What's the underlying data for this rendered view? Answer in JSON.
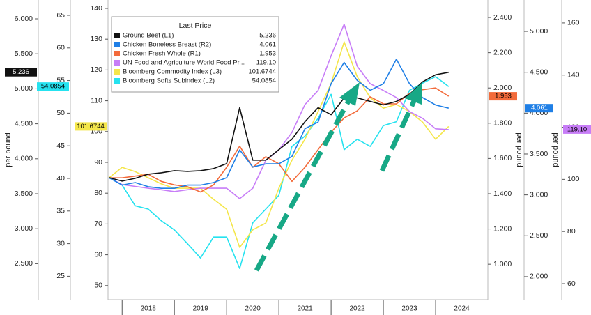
{
  "chart_data": {
    "type": "line",
    "legend_title": "Last Price",
    "legend": "upper left",
    "x": [
      2017.75,
      2018.0,
      2018.25,
      2018.5,
      2018.75,
      2019.0,
      2019.25,
      2019.5,
      2019.75,
      2020.0,
      2020.25,
      2020.5,
      2020.75,
      2021.0,
      2021.25,
      2021.5,
      2021.75,
      2022.0,
      2022.25,
      2022.5,
      2022.75,
      2023.0,
      2023.25,
      2023.5,
      2023.75,
      2024.0,
      2024.25
    ],
    "xlim": [
      2017.73,
      2025.0
    ],
    "xticks": [
      {
        "value": 2018.5,
        "label": "2018"
      },
      {
        "value": 2019.5,
        "label": "2019"
      },
      {
        "value": 2020.5,
        "label": "2020"
      },
      {
        "value": 2021.5,
        "label": "2021"
      },
      {
        "value": 2022.5,
        "label": "2022"
      },
      {
        "value": 2023.5,
        "label": "2023"
      },
      {
        "value": 2024.5,
        "label": "2024"
      }
    ],
    "x_separators": [
      2018,
      2019,
      2020,
      2021,
      2022,
      2023,
      2024
    ],
    "axes": [
      {
        "id": "L1",
        "side": "left",
        "label": "per pound",
        "ylim": [
          1.986,
          6.269
        ],
        "yticks": [
          {
            "value": 2.5,
            "label": "2.500"
          },
          {
            "value": 3.0,
            "label": "3.000"
          },
          {
            "value": 3.5,
            "label": "3.500"
          },
          {
            "value": 4.0,
            "label": "4.000"
          },
          {
            "value": 4.5,
            "label": "4.500"
          },
          {
            "value": 5.0,
            "label": "5.000"
          },
          {
            "value": 5.5,
            "label": "5.500"
          },
          {
            "value": 6.0,
            "label": "6.000"
          }
        ]
      },
      {
        "id": "L2",
        "side": "left",
        "ylim": [
          21.41,
          67.35
        ],
        "yticks": [
          25,
          30,
          35,
          40,
          45,
          50,
          55,
          60,
          65
        ]
      },
      {
        "id": "L3",
        "side": "left",
        "ylim": [
          45.43,
          142.71
        ],
        "yticks": [
          50,
          60,
          70,
          80,
          90,
          100,
          110,
          120,
          130,
          140
        ]
      },
      {
        "id": "R1",
        "side": "right",
        "label": "per pound",
        "ylim": [
          0.799,
          2.499
        ],
        "yticks": [
          {
            "value": 1.0,
            "label": "1.000"
          },
          {
            "value": 1.2,
            "label": "1.200"
          },
          {
            "value": 1.4,
            "label": "1.400"
          },
          {
            "value": 1.6,
            "label": "1.600"
          },
          {
            "value": 1.8,
            "label": "1.800"
          },
          {
            "value": 2.0,
            "label": "2.000"
          },
          {
            "value": 2.2,
            "label": "2.200"
          },
          {
            "value": 2.4,
            "label": "2.400"
          }
        ]
      },
      {
        "id": "R2",
        "side": "right",
        "label": "per pound",
        "ylim": [
          1.718,
          5.384
        ],
        "yticks": [
          {
            "value": 2.0,
            "label": "2.000"
          },
          {
            "value": 2.5,
            "label": "2.500"
          },
          {
            "value": 3.0,
            "label": "3.000"
          },
          {
            "value": 3.5,
            "label": "3.500"
          },
          {
            "value": 4.0,
            "label": "4.000"
          },
          {
            "value": 4.5,
            "label": "4.500"
          },
          {
            "value": 5.0,
            "label": "5.000"
          }
        ]
      },
      {
        "id": "R3",
        "side": "right",
        "ylim": [
          53.85,
          168.8
        ],
        "yticks": [
          60,
          80,
          100,
          120,
          140,
          160
        ]
      }
    ],
    "series": [
      {
        "name": "Ground Beef (L1)",
        "axis": "L1",
        "color": "#111111",
        "last_price": "5.236",
        "values": [
          3.73,
          3.68,
          3.72,
          3.78,
          3.8,
          3.83,
          3.82,
          3.83,
          3.86,
          3.93,
          4.73,
          3.98,
          3.98,
          4.13,
          4.28,
          4.53,
          4.73,
          4.63,
          4.87,
          4.87,
          4.82,
          4.77,
          4.82,
          4.92,
          5.1,
          5.2,
          5.236
        ]
      },
      {
        "name": "Chicken Boneless Breast (R2)",
        "axis": "R2",
        "color": "#1f7fe6",
        "last_price": "4.061",
        "values": [
          3.21,
          3.12,
          3.15,
          3.1,
          3.08,
          3.08,
          3.12,
          3.12,
          3.15,
          3.21,
          3.55,
          3.34,
          3.38,
          3.38,
          3.47,
          3.81,
          3.89,
          4.36,
          4.62,
          4.4,
          4.28,
          4.36,
          4.66,
          4.36,
          4.19,
          4.1,
          4.061
        ]
      },
      {
        "name": "Chicken Fresh Whole (R1)",
        "axis": "R1",
        "color": "#f36b3b",
        "last_price": "1.953",
        "values": [
          1.49,
          1.49,
          1.5,
          1.51,
          1.47,
          1.45,
          1.44,
          1.41,
          1.45,
          1.55,
          1.67,
          1.55,
          1.61,
          1.57,
          1.47,
          1.55,
          1.65,
          1.75,
          1.83,
          1.87,
          1.95,
          1.91,
          1.91,
          1.97,
          1.99,
          2.0,
          1.953
        ]
      },
      {
        "name": "UN Food and Agriculture World Food Pr...",
        "axis": "R3",
        "color": "#c77df7",
        "last_price": "119.10",
        "values": [
          100.6,
          98.0,
          97.3,
          96.6,
          96.0,
          95.3,
          96.0,
          96.6,
          96.6,
          96.6,
          92.6,
          96.6,
          107.3,
          111.3,
          118.0,
          128.7,
          134.1,
          147.4,
          159.5,
          143.4,
          136.7,
          134.1,
          131.4,
          126.0,
          123.4,
          119.4,
          119.1
        ]
      },
      {
        "name": "Bloomberg Commodity Index (L3)",
        "axis": "L3",
        "color": "#f4e64a",
        "last_price": "101.6744",
        "values": [
          85.0,
          88.4,
          87.0,
          85.0,
          83.0,
          81.6,
          81.6,
          81.6,
          78.0,
          74.8,
          62.4,
          68.1,
          70.3,
          81.6,
          90.7,
          97.5,
          106.5,
          115.6,
          129.1,
          117.8,
          111.0,
          107.6,
          108.8,
          106.5,
          103.1,
          97.5,
          101.6744
        ]
      },
      {
        "name": "Bloomberg Softs Subindex (L2)",
        "axis": "L2",
        "color": "#25e2ef",
        "last_price": "54.0854",
        "values": [
          40.1,
          39.0,
          35.8,
          35.3,
          33.5,
          32.1,
          30.0,
          27.8,
          31.0,
          31.0,
          26.2,
          33.2,
          35.3,
          37.4,
          44.9,
          46.5,
          49.2,
          52.9,
          44.4,
          46.0,
          44.9,
          48.1,
          48.7,
          53.5,
          54.6,
          55.6,
          54.0854
        ]
      }
    ]
  }
}
